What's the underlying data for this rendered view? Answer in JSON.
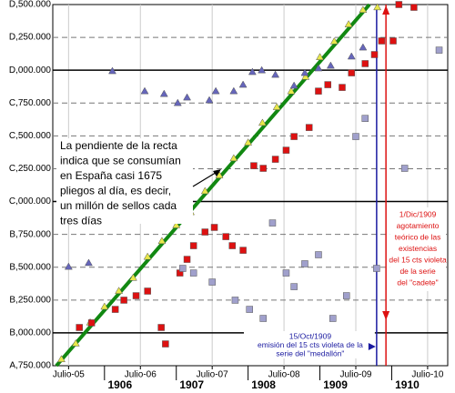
{
  "chart_data": {
    "type": "scatter",
    "xlim": [
      1905.28,
      1910.78
    ],
    "ylim": [
      10750000,
      13500000
    ],
    "xticks": [
      {
        "value": 1905.5,
        "label": "Julio-05"
      },
      {
        "value": 1906.5,
        "label": "Julio-06"
      },
      {
        "value": 1907.5,
        "label": "Julio-07"
      },
      {
        "value": 1908.5,
        "label": "Julio-08"
      },
      {
        "value": 1909.5,
        "label": "Julio-09"
      },
      {
        "value": 1910.5,
        "label": "Julio-10"
      }
    ],
    "year_ticks": [
      1906,
      1907,
      1908,
      1909,
      1910
    ],
    "yticks": [
      {
        "value": 10750000,
        "label": "A,750.000"
      },
      {
        "value": 11000000,
        "label": "B,000.000"
      },
      {
        "value": 11250000,
        "label": "B,250.000"
      },
      {
        "value": 11500000,
        "label": "B,500.000"
      },
      {
        "value": 11750000,
        "label": "B,750.000"
      },
      {
        "value": 12000000,
        "label": "C,000.000"
      },
      {
        "value": 12250000,
        "label": "C,250.000"
      },
      {
        "value": 12500000,
        "label": "C,500.000"
      },
      {
        "value": 12750000,
        "label": "C,750.000"
      },
      {
        "value": 13000000,
        "label": "D,000.000"
      },
      {
        "value": 13250000,
        "label": "D,250.000"
      },
      {
        "value": 13500000,
        "label": "D,500.000"
      }
    ],
    "grid": true,
    "series": [
      {
        "kind": "line",
        "color": "#118811",
        "x": [
          1905.33,
          1909.69
        ],
        "values": [
          10750000,
          13500000
        ]
      },
      {
        "kind": "triangle",
        "color": "#e8e84a",
        "x": [
          1905.4,
          1905.6,
          1905.8,
          1906.0,
          1906.2,
          1906.4,
          1906.6,
          1906.8,
          1907.0,
          1907.2,
          1907.4,
          1907.6,
          1907.8,
          1908.0,
          1908.2,
          1908.4,
          1908.6,
          1908.8,
          1909.0,
          1909.2,
          1909.4,
          1909.6,
          1909.8
        ],
        "values": [
          10800000,
          10920000,
          11080000,
          11200000,
          11320000,
          11420000,
          11580000,
          11700000,
          11820000,
          11920000,
          12080000,
          12200000,
          12330000,
          12450000,
          12600000,
          12720000,
          12840000,
          12950000,
          13100000,
          13220000,
          13350000,
          13460000,
          13480000
        ]
      },
      {
        "kind": "triangle",
        "color": "#6666bb",
        "x": [
          1905.5,
          1905.78,
          1906.11,
          1906.56,
          1906.83,
          1907.02,
          1907.15,
          1907.46,
          1907.55,
          1907.8,
          1907.93,
          1908.06,
          1908.19,
          1908.38,
          1908.64,
          1908.79,
          1908.98,
          1909.15,
          1909.44,
          1909.6
        ],
        "values": [
          11504000,
          11533000,
          12994000,
          12841000,
          12820000,
          12751000,
          12793000,
          12772000,
          12841000,
          12841000,
          12890000,
          12987000,
          13000000,
          12966000,
          12883000,
          12980000,
          13015000,
          13035000,
          13105000,
          13174000
        ]
      },
      {
        "kind": "square",
        "color": "#dd1111",
        "x": [
          1905.65,
          1905.82,
          1906.15,
          1906.27,
          1906.44,
          1906.6,
          1906.79,
          1906.85,
          1907.05,
          1907.15,
          1907.24,
          1907.4,
          1907.53,
          1907.69,
          1907.78,
          1907.93,
          1908.08,
          1908.21,
          1908.38,
          1908.53,
          1908.64,
          1908.85,
          1908.98,
          1909.11,
          1909.31,
          1909.44,
          1909.63,
          1909.76,
          1909.86,
          1910.02,
          1910.1,
          1910.31
        ],
        "values": [
          11041000,
          11076000,
          11179000,
          11249000,
          11283000,
          11318000,
          11041000,
          10916000,
          11456000,
          11560000,
          11664000,
          11768000,
          11803000,
          11733000,
          11664000,
          11629000,
          12273000,
          12253000,
          12322000,
          12391000,
          12495000,
          12564000,
          12841000,
          12890000,
          12869000,
          12980000,
          13050000,
          13119000,
          13223000,
          13223000,
          13500000,
          13479000
        ]
      },
      {
        "kind": "square",
        "color": "#a0a0cc",
        "x": [
          1907.09,
          1907.24,
          1907.5,
          1907.82,
          1908.02,
          1908.21,
          1908.34,
          1908.53,
          1908.64,
          1908.79,
          1908.98,
          1909.18,
          1909.37,
          1909.5,
          1909.63,
          1909.79,
          1910.18,
          1910.66
        ],
        "values": [
          11491000,
          11456000,
          11387000,
          11249000,
          11179000,
          11110000,
          11837000,
          11456000,
          11352000,
          11526000,
          11595000,
          11110000,
          11283000,
          12495000,
          12633000,
          11491000,
          12253000,
          13153000
        ]
      }
    ],
    "annotations": [
      {
        "lines": [
          "La pendiente de la recta",
          "indica que se consumían",
          "en España casi 1675",
          "pliegos al día, es decir,",
          "un millón de sellos cada",
          "tres días"
        ]
      },
      {
        "x": 1909.79,
        "color": "#1a1aa0",
        "lines": [
          "15/Oct/1909",
          "emisión del 15 cts violeta de la",
          "serie del \"medallón\""
        ]
      },
      {
        "x": 1909.92,
        "color": "#dd1111",
        "lines": [
          "1/Dic/1909",
          "agotamiento",
          "teórico de las",
          "existencias",
          "del 15 cts violeta",
          "de la serie",
          "del \"cadete\""
        ]
      }
    ]
  }
}
